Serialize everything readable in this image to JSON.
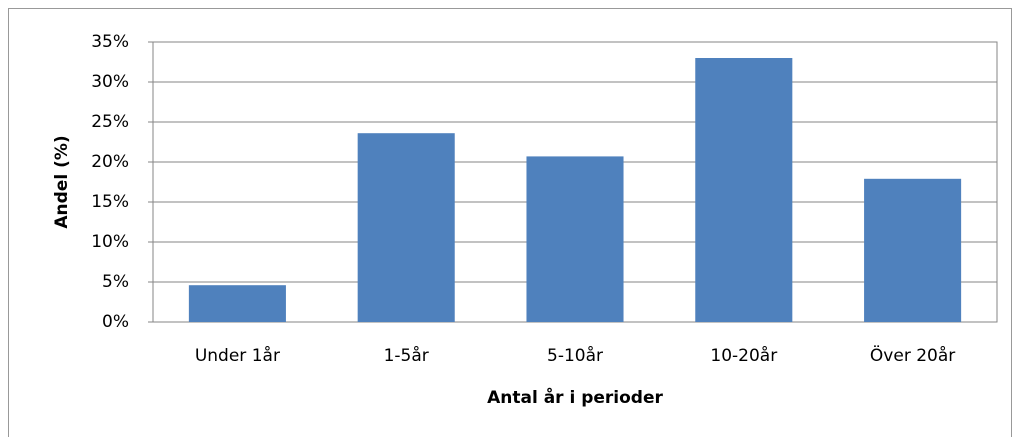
{
  "chart_data": {
    "type": "bar",
    "x_label": "Antal år i perioder",
    "y_label": "Andel (%)",
    "categories": [
      "Under 1år",
      "1-5år",
      "5-10år",
      "10-20år",
      "Över 20år"
    ],
    "values": [
      4.6,
      23.6,
      20.7,
      33,
      17.9
    ],
    "color": "#4f81bd",
    "ylim": [
      0,
      35
    ],
    "yticks": [
      {
        "value": 0,
        "label": "0%"
      },
      {
        "value": 5,
        "label": "5%"
      },
      {
        "value": 10,
        "label": "10%"
      },
      {
        "value": 15,
        "label": "15%"
      },
      {
        "value": 20,
        "label": "20%"
      },
      {
        "value": 25,
        "label": "25%"
      },
      {
        "value": 30,
        "label": "30%"
      },
      {
        "value": 35,
        "label": "35%"
      }
    ],
    "grid": true
  }
}
